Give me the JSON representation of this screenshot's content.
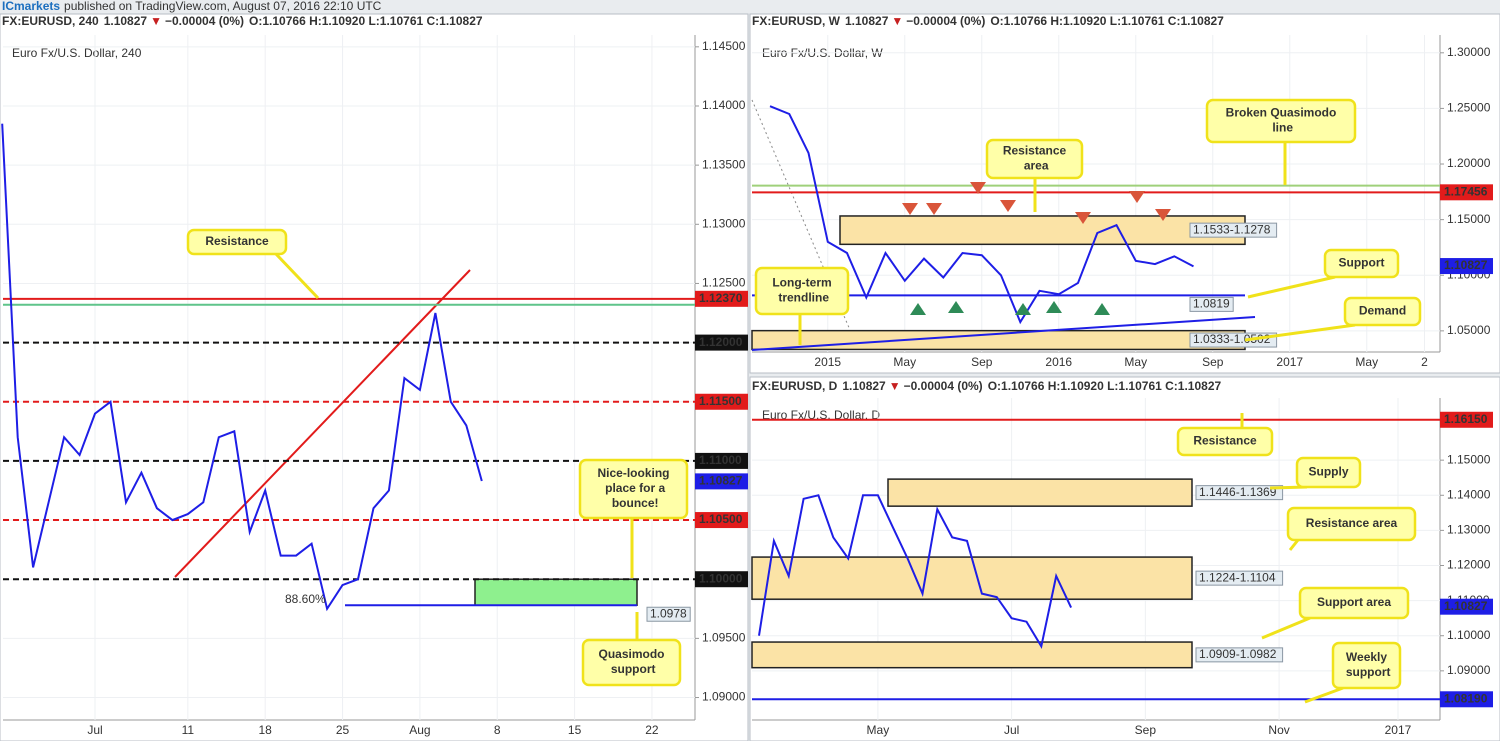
{
  "page": {
    "publisher": "ICmarkets",
    "published": "published on TradingView.com, August 07, 2016 22:10 UTC"
  },
  "chart_data": [
    {
      "type": "line",
      "subtitle": "Euro Fx/U.S. Dollar, 240",
      "header": {
        "symbol": "FX:EURUSD, 240",
        "last": 1.10827,
        "direction": "▼",
        "change": "−0.00004 (0%)",
        "ohlc": "O:1.10766 H:1.10920 L:1.10761 C:1.10827"
      },
      "categories": [
        null,
        null,
        null,
        null,
        null,
        null,
        "Jul",
        null,
        null,
        null,
        null,
        null,
        "11",
        null,
        null,
        null,
        null,
        "18",
        null,
        null,
        null,
        null,
        "25",
        null,
        null,
        null,
        null,
        "Aug",
        null,
        null,
        null,
        null,
        "8",
        null,
        null,
        null,
        null,
        "15",
        null,
        null,
        null,
        null,
        "22",
        null,
        null
      ],
      "series": [
        {
          "name": "EURUSD",
          "color": "#1e1ee6",
          "values": [
            1.1385,
            1.112,
            1.101,
            1.1065,
            1.112,
            1.1105,
            1.114,
            1.115,
            1.1065,
            1.109,
            1.106,
            1.105,
            1.1055,
            1.1065,
            1.112,
            1.1125,
            1.104,
            1.1075,
            1.102,
            1.102,
            1.103,
            1.0975,
            1.0995,
            1.1,
            1.106,
            1.1075,
            1.117,
            1.116,
            1.1225,
            1.115,
            1.113,
            1.1083,
            null,
            null,
            null,
            null,
            null,
            null,
            null,
            null,
            null,
            null,
            null,
            null,
            null
          ]
        }
      ],
      "ylim": [
        1.0881,
        1.146
      ],
      "yticks": [
        {
          "value": 1.09,
          "label": "1.09000"
        },
        {
          "value": 1.095,
          "label": "1.09500"
        },
        {
          "value": 1.1,
          "label": "1.10000"
        },
        {
          "value": 1.105,
          "label": "1.10500"
        },
        {
          "value": 1.11,
          "label": "1.11000"
        },
        {
          "value": 1.115,
          "label": "1.11500"
        },
        {
          "value": 1.12,
          "label": "1.12000"
        },
        {
          "value": 1.125,
          "label": "1.12500"
        },
        {
          "value": 1.13,
          "label": "1.13000"
        },
        {
          "value": 1.135,
          "label": "1.13500"
        },
        {
          "value": 1.14,
          "label": "1.14000"
        },
        {
          "value": 1.145,
          "label": "1.14500"
        }
      ],
      "grid": true,
      "levels": [
        {
          "value": 1.1237,
          "label": "1.12370",
          "color": "#e21b1b",
          "style": "solid"
        },
        {
          "value": 1.1232,
          "color": "#5fc48a",
          "style": "solid"
        },
        {
          "value": 1.12,
          "label": "1.12000",
          "color": "#111111",
          "style": "dashed"
        },
        {
          "value": 1.115,
          "label": "1.11500",
          "color": "#e21b1b",
          "style": "dashed"
        },
        {
          "value": 1.11,
          "label": "1.11000",
          "color": "#111111",
          "style": "dashed"
        },
        {
          "value": 1.105,
          "label": "1.10500",
          "color": "#e21b1b",
          "style": "dashed"
        },
        {
          "value": 1.1,
          "label": "1.10000",
          "color": "#111111",
          "style": "dashed"
        },
        {
          "value": 1.0978,
          "label": "1.0978",
          "color": "#1e1ee6",
          "style": "solid",
          "label_style": "box"
        }
      ],
      "zones": [
        {
          "high": 1.1,
          "low": 1.0978,
          "color": "#8ef08e"
        }
      ],
      "last": {
        "value": 1.10827,
        "label": "1.10827",
        "color": "#1e1ee6"
      },
      "notes": [
        "88.60%"
      ],
      "annotations": [
        "Resistance",
        "Nice-looking place for a bounce!",
        "Quasimodo support"
      ]
    },
    {
      "type": "line",
      "subtitle": "Euro Fx/U.S. Dollar, W",
      "header": {
        "symbol": "FX:EURUSD, W",
        "last": 1.10827,
        "direction": "▼",
        "change": "−0.00004 (0%)",
        "ohlc": "O:1.10766 H:1.10920 L:1.10761 C:1.10827"
      },
      "categories": [
        null,
        null,
        null,
        "2015",
        null,
        null,
        null,
        "May",
        null,
        null,
        null,
        "Sep",
        null,
        null,
        null,
        "2016",
        null,
        null,
        null,
        "May",
        null,
        null,
        null,
        "Sep",
        null,
        null,
        null,
        "2017",
        null,
        null,
        null,
        "May",
        null,
        null,
        "2"
      ],
      "series": [
        {
          "name": "EURUSD",
          "color": "#1e1ee6",
          "values": [
            1.252,
            1.245,
            1.21,
            1.13,
            1.12,
            1.08,
            1.12,
            1.095,
            1.115,
            1.098,
            1.12,
            1.118,
            1.1,
            1.058,
            1.086,
            1.083,
            1.093,
            1.138,
            1.145,
            1.113,
            1.11,
            1.117,
            1.108,
            null,
            null,
            null,
            null,
            null,
            null,
            null,
            null,
            null,
            null,
            null,
            null
          ]
        }
      ],
      "ylim": [
        1.031,
        1.316
      ],
      "yticks": [
        {
          "value": 1.05,
          "label": "1.05000"
        },
        {
          "value": 1.1,
          "label": "1.10000"
        },
        {
          "value": 1.15,
          "label": "1.15000"
        },
        {
          "value": 1.2,
          "label": "1.20000"
        },
        {
          "value": 1.25,
          "label": "1.25000"
        },
        {
          "value": 1.3,
          "label": "1.30000"
        }
      ],
      "grid": true,
      "levels": [
        {
          "value": 1.17456,
          "label": "1.17456",
          "color": "#e21b1b",
          "style": "solid"
        },
        {
          "value": 1.1806,
          "color": "#9fd07a",
          "style": "solid"
        },
        {
          "value": 1.0819,
          "label": "1.0819",
          "color": "#1e1ee6",
          "style": "solid",
          "label_style": "box"
        }
      ],
      "zones": [
        {
          "label": "1.1533-1.1278",
          "high": 1.1533,
          "low": 1.1278,
          "color": "#fbe3a6"
        },
        {
          "label": "1.0333-1.0502",
          "high": 1.0502,
          "low": 1.0333,
          "color": "#fbe3a6"
        }
      ],
      "last": {
        "value": 1.10827,
        "label": "1.10827",
        "color": "#1e1ee6"
      },
      "annotations": [
        "Broken Quasimodo line",
        "Resistance area",
        "Support",
        "Demand",
        "Long-term trendline"
      ]
    },
    {
      "type": "line",
      "subtitle": "Euro Fx/U.S. Dollar, D",
      "header": {
        "symbol": "FX:EURUSD, D",
        "last": 1.10827,
        "direction": "▼",
        "change": "−0.00004 (0%)",
        "ohlc": "O:1.10766 H:1.10920 L:1.10761 C:1.10827"
      },
      "categories": [
        null,
        null,
        null,
        null,
        null,
        null,
        null,
        null,
        "May",
        null,
        null,
        null,
        null,
        null,
        null,
        null,
        null,
        "Jul",
        null,
        null,
        null,
        null,
        null,
        null,
        null,
        null,
        "Sep",
        null,
        null,
        null,
        null,
        null,
        null,
        null,
        null,
        "Nov",
        null,
        null,
        null,
        null,
        null,
        null,
        null,
        "2017",
        null,
        null
      ],
      "series": [
        {
          "name": "EURUSD",
          "color": "#1e1ee6",
          "values": [
            1.1,
            1.127,
            1.117,
            1.139,
            1.14,
            1.128,
            1.122,
            1.14,
            1.14,
            1.131,
            1.122,
            1.112,
            1.136,
            1.128,
            1.127,
            1.112,
            1.111,
            1.105,
            1.104,
            1.097,
            1.117,
            1.108,
            null,
            null,
            null,
            null,
            null,
            null,
            null,
            null,
            null,
            null,
            null,
            null,
            null,
            null,
            null,
            null,
            null,
            null,
            null,
            null,
            null,
            null,
            null,
            null
          ]
        }
      ],
      "ylim": [
        1.076,
        1.1677
      ],
      "yticks": [
        {
          "value": 1.09,
          "label": "1.09000"
        },
        {
          "value": 1.1,
          "label": "1.10000"
        },
        {
          "value": 1.11,
          "label": "1.11000"
        },
        {
          "value": 1.12,
          "label": "1.12000"
        },
        {
          "value": 1.13,
          "label": "1.13000"
        },
        {
          "value": 1.14,
          "label": "1.14000"
        },
        {
          "value": 1.15,
          "label": "1.15000"
        }
      ],
      "grid": true,
      "levels": [
        {
          "value": 1.1615,
          "label": "1.16150",
          "color": "#e21b1b",
          "style": "solid"
        },
        {
          "value": 1.0819,
          "label": "1.08190",
          "color": "#1e1ee6",
          "style": "solid"
        }
      ],
      "zones": [
        {
          "label": "1.1446-1.1369",
          "high": 1.1446,
          "low": 1.1369,
          "color": "#fbe3a6"
        },
        {
          "label": "1.1224-1.1104",
          "high": 1.1224,
          "low": 1.1104,
          "color": "#fbe3a6"
        },
        {
          "label": "1.0909-1.0982",
          "high": 1.0982,
          "low": 1.0909,
          "color": "#fbe3a6"
        }
      ],
      "last": {
        "value": 1.10827,
        "label": "1.10827",
        "color": "#1e1ee6"
      },
      "annotations": [
        "Resistance",
        "Supply",
        "Resistance area",
        "Support area",
        "Weekly support"
      ]
    }
  ]
}
